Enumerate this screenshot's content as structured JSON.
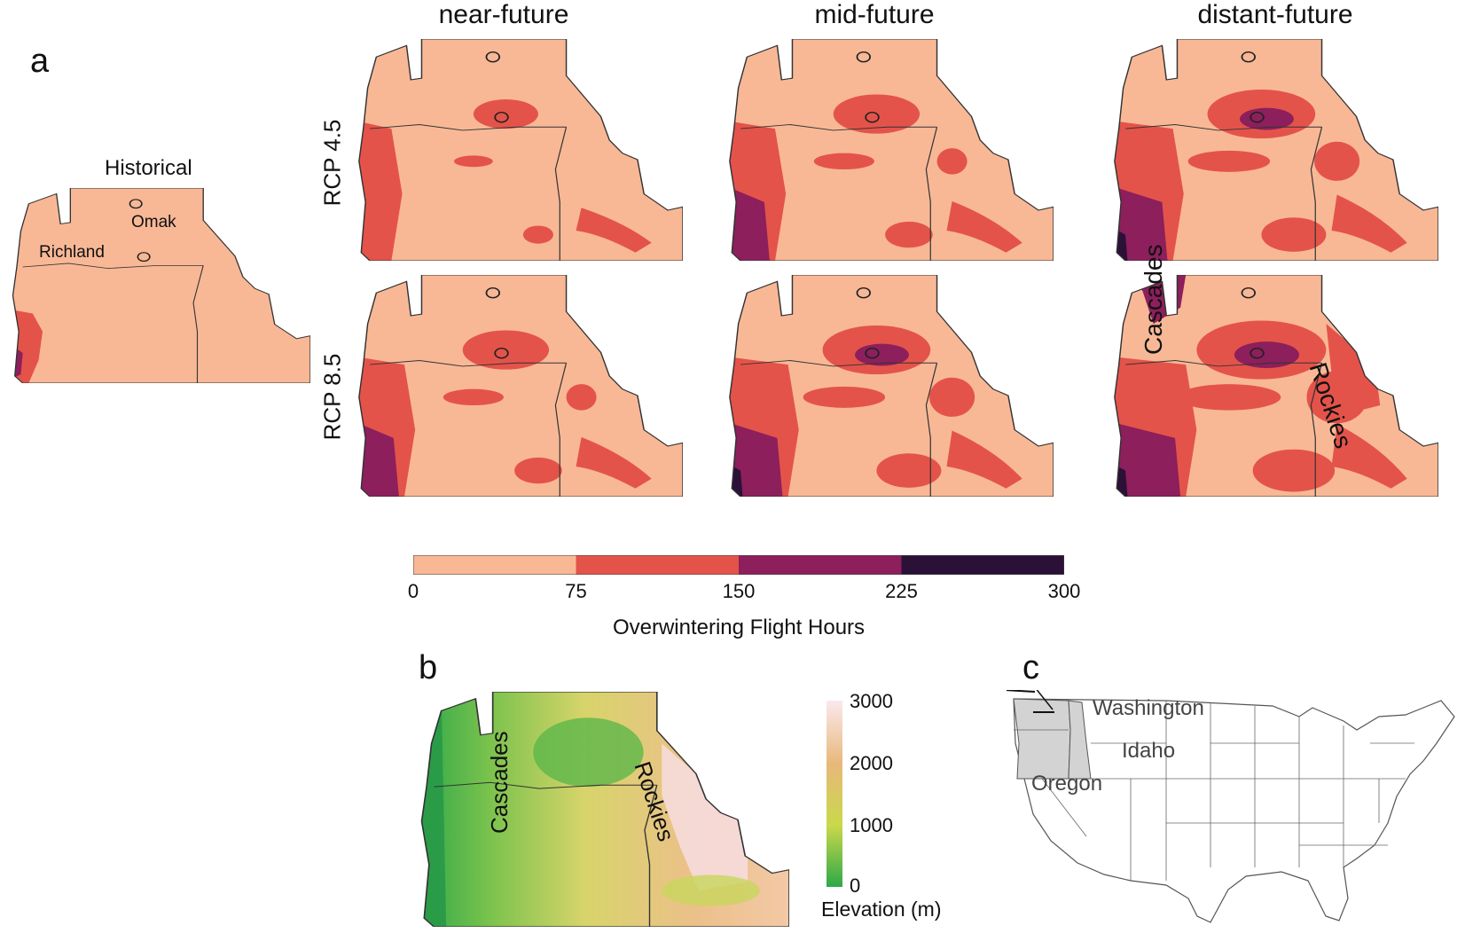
{
  "panel_labels": {
    "a": "a",
    "b": "b",
    "c": "c"
  },
  "column_titles": [
    "near-future",
    "mid-future",
    "distant-future"
  ],
  "row_labels": [
    "RCP 4.5",
    "RCP 8.5"
  ],
  "historical": {
    "title": "Historical",
    "sites": [
      "Omak",
      "Richland"
    ]
  },
  "map_annotations": {
    "cascades": "Cascades",
    "rockies": "Rockies"
  },
  "flight_colorbar": {
    "title": "Overwintering Flight Hours",
    "ticks": [
      "0",
      "75",
      "150",
      "225",
      "300"
    ],
    "bins": [
      {
        "range": [
          0,
          75
        ],
        "color": "#f8b896"
      },
      {
        "range": [
          75,
          150
        ],
        "color": "#e4534a"
      },
      {
        "range": [
          150,
          225
        ],
        "color": "#8c1f5c"
      },
      {
        "range": [
          225,
          300
        ],
        "color": "#2b1038"
      }
    ]
  },
  "elevation": {
    "title": "Elevation (m)",
    "ticks": [
      "3000",
      "2000",
      "1000",
      "0"
    ],
    "colors": [
      "#2ea84a",
      "#c9d94a",
      "#e8b87a",
      "#fbe9ee"
    ]
  },
  "us_map": {
    "states": [
      "Washington",
      "Idaho",
      "Oregon"
    ],
    "highlight_color": "#d3d3d3"
  },
  "scenarios": [
    {
      "id": "rcp45-near",
      "level": 1
    },
    {
      "id": "rcp45-mid",
      "level": 2
    },
    {
      "id": "rcp45-distant",
      "level": 3
    },
    {
      "id": "rcp85-near",
      "level": 2
    },
    {
      "id": "rcp85-mid",
      "level": 3
    },
    {
      "id": "rcp85-distant",
      "level": 4
    }
  ]
}
